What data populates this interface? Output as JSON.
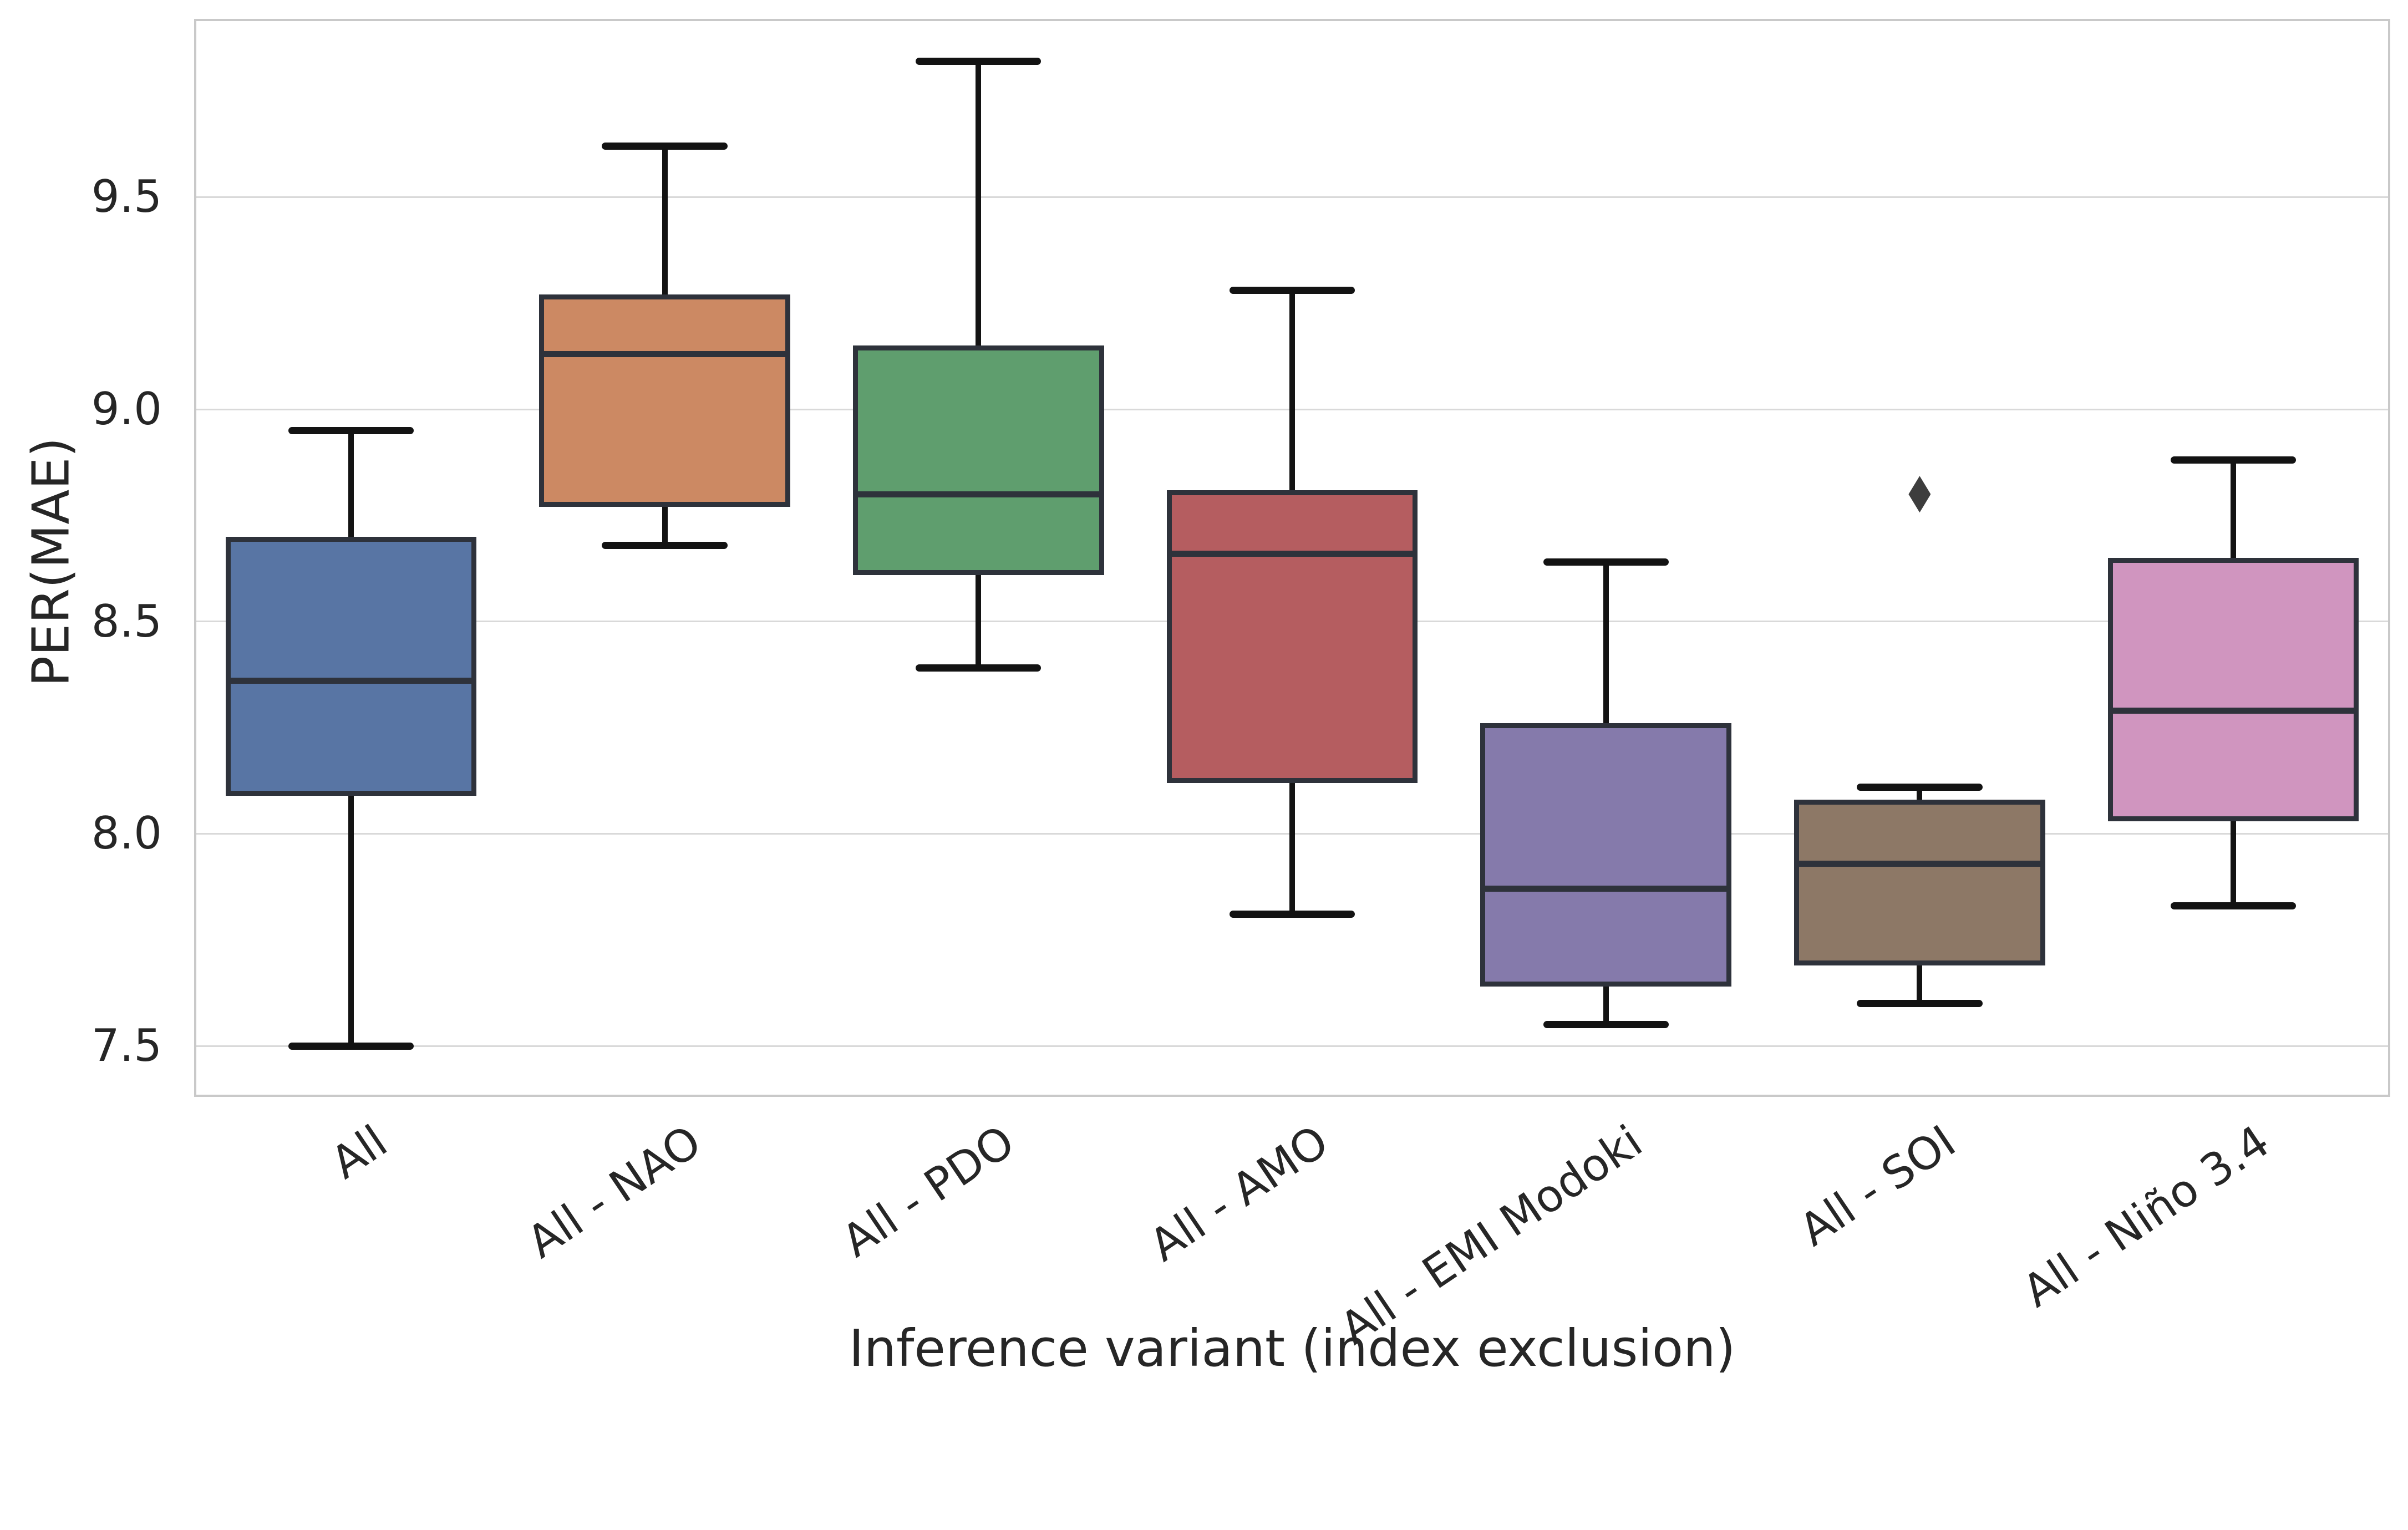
{
  "chart_data": {
    "type": "box",
    "title": "",
    "xlabel": "Inference variant (index exclusion)",
    "ylabel": "PER(MAE)",
    "ylim": [
      7.38,
      9.92
    ],
    "grid": "horizontal",
    "legend": "none",
    "y_ticks": [
      {
        "label": "7.5",
        "value": 7.5
      },
      {
        "label": "8.0",
        "value": 8.0
      },
      {
        "label": "8.5",
        "value": 8.5
      },
      {
        "label": "9.0",
        "value": 9.0
      },
      {
        "label": "9.5",
        "value": 9.5
      }
    ],
    "categories": [
      "All",
      "All - NAO",
      "All - PDO",
      "All - AMO",
      "All - EMI Modoki",
      "All - SOI",
      "All - Niño 3.4"
    ],
    "boxes": [
      {
        "label": "All",
        "color": "#5875A4",
        "whisker_low": 7.5,
        "q1": 8.09,
        "median": 8.36,
        "q3": 8.7,
        "whisker_high": 8.95,
        "outliers": []
      },
      {
        "label": "All - NAO",
        "color": "#CC8963",
        "whisker_low": 8.68,
        "q1": 8.77,
        "median": 9.13,
        "q3": 9.27,
        "whisker_high": 9.62,
        "outliers": []
      },
      {
        "label": "All - PDO",
        "color": "#5F9E6E",
        "whisker_low": 8.39,
        "q1": 8.61,
        "median": 8.8,
        "q3": 9.15,
        "whisker_high": 9.82,
        "outliers": []
      },
      {
        "label": "All - AMO",
        "color": "#B55D60",
        "whisker_low": 7.81,
        "q1": 8.12,
        "median": 8.66,
        "q3": 8.81,
        "whisker_high": 9.28,
        "outliers": []
      },
      {
        "label": "All - EMI Modoki",
        "color": "#857AAB",
        "whisker_low": 7.55,
        "q1": 7.64,
        "median": 7.87,
        "q3": 8.26,
        "whisker_high": 8.64,
        "outliers": []
      },
      {
        "label": "All - SOI",
        "color": "#8D7866",
        "whisker_low": 7.6,
        "q1": 7.69,
        "median": 7.93,
        "q3": 8.08,
        "whisker_high": 8.11,
        "outliers": [
          8.8
        ]
      },
      {
        "label": "All - Niño 3.4",
        "color": "#D095BF",
        "whisker_low": 7.83,
        "q1": 8.03,
        "median": 8.29,
        "q3": 8.65,
        "whisker_high": 8.88,
        "outliers": []
      }
    ],
    "colors": {
      "box_edge": "#2e323b",
      "whisker": "#131313",
      "median": "#2e323b",
      "outlier": "#3d3d3d",
      "gridline": "#d9d9d9",
      "spine": "#c9c9c9",
      "text": "#262626",
      "background": "#ffffff"
    }
  }
}
